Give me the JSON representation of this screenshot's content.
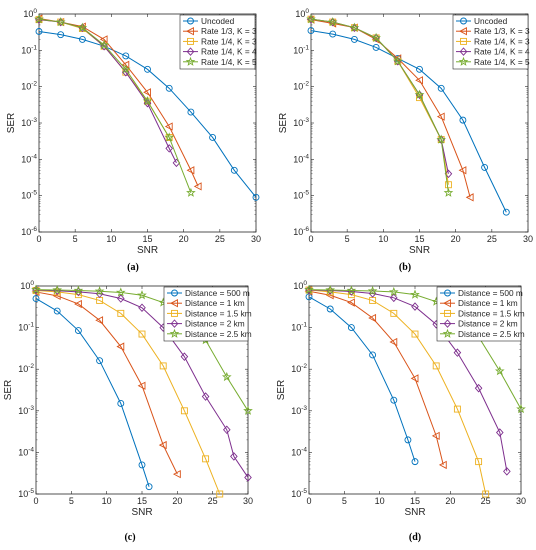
{
  "colors": {
    "blue": "#0072BD",
    "orange": "#D95319",
    "yellow": "#EDB120",
    "purple": "#7E2F8E",
    "green": "#77AC30"
  },
  "chart_data": [
    {
      "panel": "(a)",
      "type": "line",
      "xlabel": "SNR",
      "ylabel": "SER",
      "xlim": [
        0,
        30
      ],
      "ylim": [
        1e-06,
        1
      ],
      "y_scale": "log",
      "xticks": [
        "0",
        "5",
        "10",
        "15",
        "20",
        "25",
        "30"
      ],
      "yticks": [
        "10^-6",
        "10^-5",
        "10^-4",
        "10^-3",
        "10^-2",
        "10^-1",
        "10^0"
      ],
      "legend_position": "top-right",
      "series": [
        {
          "name": "Uncoded",
          "color": "blue",
          "marker": "circle",
          "x": [
            0,
            3,
            6,
            9,
            12,
            15,
            18,
            21,
            24,
            27,
            30
          ],
          "y": [
            0.33,
            0.27,
            0.2,
            0.13,
            0.07,
            0.03,
            0.009,
            0.002,
            0.0004,
            5e-05,
            9e-06
          ]
        },
        {
          "name": "Rate 1/3, K = 3",
          "color": "orange",
          "marker": "triangle-left",
          "x": [
            0,
            3,
            6,
            9,
            12,
            15,
            18,
            21,
            22
          ],
          "y": [
            0.75,
            0.6,
            0.45,
            0.2,
            0.04,
            0.007,
            0.0008,
            5e-05,
            1.8e-05
          ]
        },
        {
          "name": "Rate 1/4, K = 3",
          "color": "yellow",
          "marker": "square",
          "x": [
            0,
            3,
            6,
            9,
            12,
            15,
            18
          ],
          "y": [
            0.7,
            0.6,
            0.4,
            0.13,
            0.025,
            0.004,
            0.0004
          ]
        },
        {
          "name": "Rate 1/4, K = 4",
          "color": "purple",
          "marker": "diamond",
          "x": [
            0,
            3,
            6,
            9,
            12,
            15,
            18,
            19
          ],
          "y": [
            0.7,
            0.6,
            0.42,
            0.13,
            0.025,
            0.0035,
            0.0002,
            8e-05
          ]
        },
        {
          "name": "Rate 1/4, K = 5",
          "color": "green",
          "marker": "star",
          "x": [
            0,
            3,
            6,
            9,
            12,
            15,
            18,
            21
          ],
          "y": [
            0.72,
            0.6,
            0.42,
            0.14,
            0.03,
            0.004,
            0.0004,
            1.2e-05
          ]
        }
      ]
    },
    {
      "panel": "(b)",
      "type": "line",
      "xlabel": "SNR",
      "ylabel": "SER",
      "xlim": [
        0,
        30
      ],
      "ylim": [
        1e-06,
        1
      ],
      "y_scale": "log",
      "xticks": [
        "0",
        "5",
        "10",
        "15",
        "20",
        "25",
        "30"
      ],
      "yticks": [
        "10^-6",
        "10^-5",
        "10^-4",
        "10^-3",
        "10^-2",
        "10^-1",
        "10^0"
      ],
      "legend_position": "top-right",
      "series": [
        {
          "name": "Uncoded",
          "color": "blue",
          "marker": "circle",
          "x": [
            0,
            3,
            6,
            9,
            12,
            15,
            18,
            21,
            24,
            27
          ],
          "y": [
            0.35,
            0.28,
            0.2,
            0.12,
            0.06,
            0.03,
            0.009,
            0.0012,
            6e-05,
            3.5e-06
          ]
        },
        {
          "name": "Rate 1/3, K = 3",
          "color": "orange",
          "marker": "triangle-left",
          "x": [
            0,
            3,
            6,
            9,
            12,
            15,
            18,
            21,
            22
          ],
          "y": [
            0.7,
            0.55,
            0.42,
            0.2,
            0.06,
            0.015,
            0.0015,
            5e-05,
            9e-06
          ]
        },
        {
          "name": "Rate 1/4, K = 3",
          "color": "yellow",
          "marker": "square",
          "x": [
            0,
            3,
            6,
            9,
            12,
            15,
            18,
            19
          ],
          "y": [
            0.72,
            0.6,
            0.42,
            0.22,
            0.05,
            0.005,
            0.00035,
            2e-05
          ]
        },
        {
          "name": "Rate 1/4, K = 4",
          "color": "purple",
          "marker": "diamond",
          "x": [
            0,
            3,
            6,
            9,
            12,
            15,
            18,
            19
          ],
          "y": [
            0.72,
            0.6,
            0.42,
            0.22,
            0.05,
            0.006,
            0.00035,
            4e-05
          ]
        },
        {
          "name": "Rate 1/4, K = 5",
          "color": "green",
          "marker": "star",
          "x": [
            0,
            3,
            6,
            9,
            12,
            15,
            18,
            19
          ],
          "y": [
            0.72,
            0.6,
            0.42,
            0.22,
            0.05,
            0.006,
            0.00035,
            1.2e-05
          ]
        }
      ]
    },
    {
      "panel": "(c)",
      "type": "line",
      "xlabel": "SNR",
      "ylabel": "SER",
      "xlim": [
        0,
        30
      ],
      "ylim": [
        1e-05,
        1
      ],
      "y_scale": "log",
      "xticks": [
        "0",
        "5",
        "10",
        "15",
        "20",
        "25",
        "30"
      ],
      "yticks": [
        "10^-5",
        "10^-4",
        "10^-3",
        "10^-2",
        "10^-1",
        "10^0"
      ],
      "legend_position": "top-right",
      "series": [
        {
          "name": "Distance = 500 m",
          "color": "blue",
          "marker": "circle",
          "x": [
            0,
            3,
            6,
            9,
            12,
            15,
            16
          ],
          "y": [
            0.5,
            0.25,
            0.085,
            0.016,
            0.0015,
            5e-05,
            1.5e-05
          ]
        },
        {
          "name": "Distance = 1 km",
          "color": "orange",
          "marker": "triangle-left",
          "x": [
            0,
            3,
            6,
            9,
            12,
            15,
            18,
            20
          ],
          "y": [
            0.72,
            0.58,
            0.37,
            0.15,
            0.035,
            0.004,
            0.00015,
            3e-05
          ]
        },
        {
          "name": "Distance = 1.5 km",
          "color": "yellow",
          "marker": "square",
          "x": [
            0,
            3,
            6,
            9,
            12,
            15,
            18,
            21,
            24,
            26
          ],
          "y": [
            0.78,
            0.72,
            0.62,
            0.45,
            0.22,
            0.07,
            0.012,
            0.001,
            7e-05,
            1e-05
          ]
        },
        {
          "name": "Distance = 2 km",
          "color": "purple",
          "marker": "diamond",
          "x": [
            0,
            3,
            6,
            9,
            12,
            15,
            18,
            21,
            24,
            27,
            28,
            30
          ],
          "y": [
            0.8,
            0.77,
            0.72,
            0.65,
            0.5,
            0.3,
            0.1,
            0.02,
            0.0022,
            0.00035,
            8e-05,
            2.5e-05
          ]
        },
        {
          "name": "Distance = 2.5 km",
          "color": "green",
          "marker": "star",
          "x": [
            0,
            3,
            6,
            9,
            12,
            15,
            18,
            21,
            24,
            27,
            30
          ],
          "y": [
            0.82,
            0.8,
            0.78,
            0.75,
            0.7,
            0.6,
            0.4,
            0.2,
            0.05,
            0.0065,
            0.001
          ]
        }
      ]
    },
    {
      "panel": "(d)",
      "type": "line",
      "xlabel": "SNR",
      "ylabel": "SER",
      "xlim": [
        0,
        30
      ],
      "ylim": [
        1e-05,
        1
      ],
      "y_scale": "log",
      "xticks": [
        "0",
        "5",
        "10",
        "15",
        "20",
        "25",
        "30"
      ],
      "yticks": [
        "10^-5",
        "10^-4",
        "10^-3",
        "10^-2",
        "10^-1",
        "10^0"
      ],
      "legend_position": "top-right",
      "series": [
        {
          "name": "Distance = 500 m",
          "color": "blue",
          "marker": "circle",
          "x": [
            0,
            3,
            6,
            9,
            12,
            14,
            15
          ],
          "y": [
            0.55,
            0.28,
            0.1,
            0.022,
            0.0018,
            0.0002,
            6e-05
          ]
        },
        {
          "name": "Distance = 1 km",
          "color": "orange",
          "marker": "triangle-left",
          "x": [
            0,
            3,
            6,
            9,
            12,
            15,
            18,
            19
          ],
          "y": [
            0.75,
            0.6,
            0.4,
            0.17,
            0.045,
            0.006,
            0.00025,
            5e-05
          ]
        },
        {
          "name": "Distance = 1.5 km",
          "color": "yellow",
          "marker": "square",
          "x": [
            0,
            3,
            6,
            9,
            12,
            15,
            18,
            21,
            24,
            25
          ],
          "y": [
            0.8,
            0.72,
            0.62,
            0.45,
            0.22,
            0.07,
            0.012,
            0.0011,
            6e-05,
            1e-05
          ]
        },
        {
          "name": "Distance = 2 km",
          "color": "purple",
          "marker": "diamond",
          "x": [
            0,
            3,
            6,
            9,
            12,
            15,
            18,
            21,
            24,
            27,
            28
          ],
          "y": [
            0.8,
            0.78,
            0.74,
            0.66,
            0.52,
            0.32,
            0.12,
            0.025,
            0.0035,
            0.0003,
            3.5e-05
          ]
        },
        {
          "name": "Distance = 2.5 km",
          "color": "green",
          "marker": "star",
          "x": [
            0,
            3,
            6,
            9,
            12,
            15,
            18,
            21,
            24,
            27,
            30
          ],
          "y": [
            0.82,
            0.8,
            0.78,
            0.76,
            0.72,
            0.62,
            0.42,
            0.2,
            0.06,
            0.009,
            0.0011
          ]
        }
      ]
    }
  ]
}
